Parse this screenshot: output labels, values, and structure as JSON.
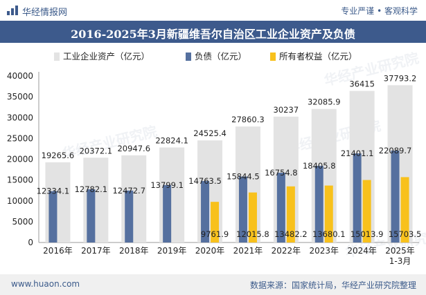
{
  "header": {
    "site_name": "华经情报网",
    "slogan": "专业严谨 • 客观科学"
  },
  "footer": {
    "url": "www.huaon.com",
    "source": "数据来源：国家统计局，华经产业研究院整理"
  },
  "colors": {
    "title_bar": "#3d5a8c",
    "assets": "#e3e3e3",
    "liabilities": "#55709f",
    "equity": "#f8c11c"
  },
  "watermark": "华经产业研究院",
  "chart_data": {
    "type": "bar",
    "title": "2016-2025年3月新疆维吾尔自治区工业企业资产及负债",
    "categories": [
      "2016年",
      "2017年",
      "2018年",
      "2019年",
      "2020年",
      "2021年",
      "2022年",
      "2023年",
      "2024年",
      "2025年\n1-3月"
    ],
    "series": [
      {
        "name": "工业企业资产（亿元）",
        "values": [
          19265.6,
          20372.1,
          20947.6,
          22824.1,
          24525.4,
          27860.3,
          30237,
          32085.9,
          36415,
          37793.2
        ]
      },
      {
        "name": "负债（亿元）",
        "values": [
          12334.1,
          12782.1,
          12472.7,
          13799.1,
          14763.5,
          15844.5,
          16754.8,
          18405.8,
          21401.1,
          22089.7
        ]
      },
      {
        "name": "所有者权益（亿元）",
        "values": [
          null,
          null,
          null,
          null,
          9761.9,
          12015.8,
          13482.2,
          13680.1,
          15013.9,
          15703.5
        ]
      }
    ],
    "ylim": [
      0,
      40000
    ],
    "yticks": [
      0,
      5000,
      10000,
      15000,
      20000,
      25000,
      30000,
      35000,
      40000
    ],
    "xlabel": "",
    "ylabel": "",
    "legend_position": "top"
  }
}
